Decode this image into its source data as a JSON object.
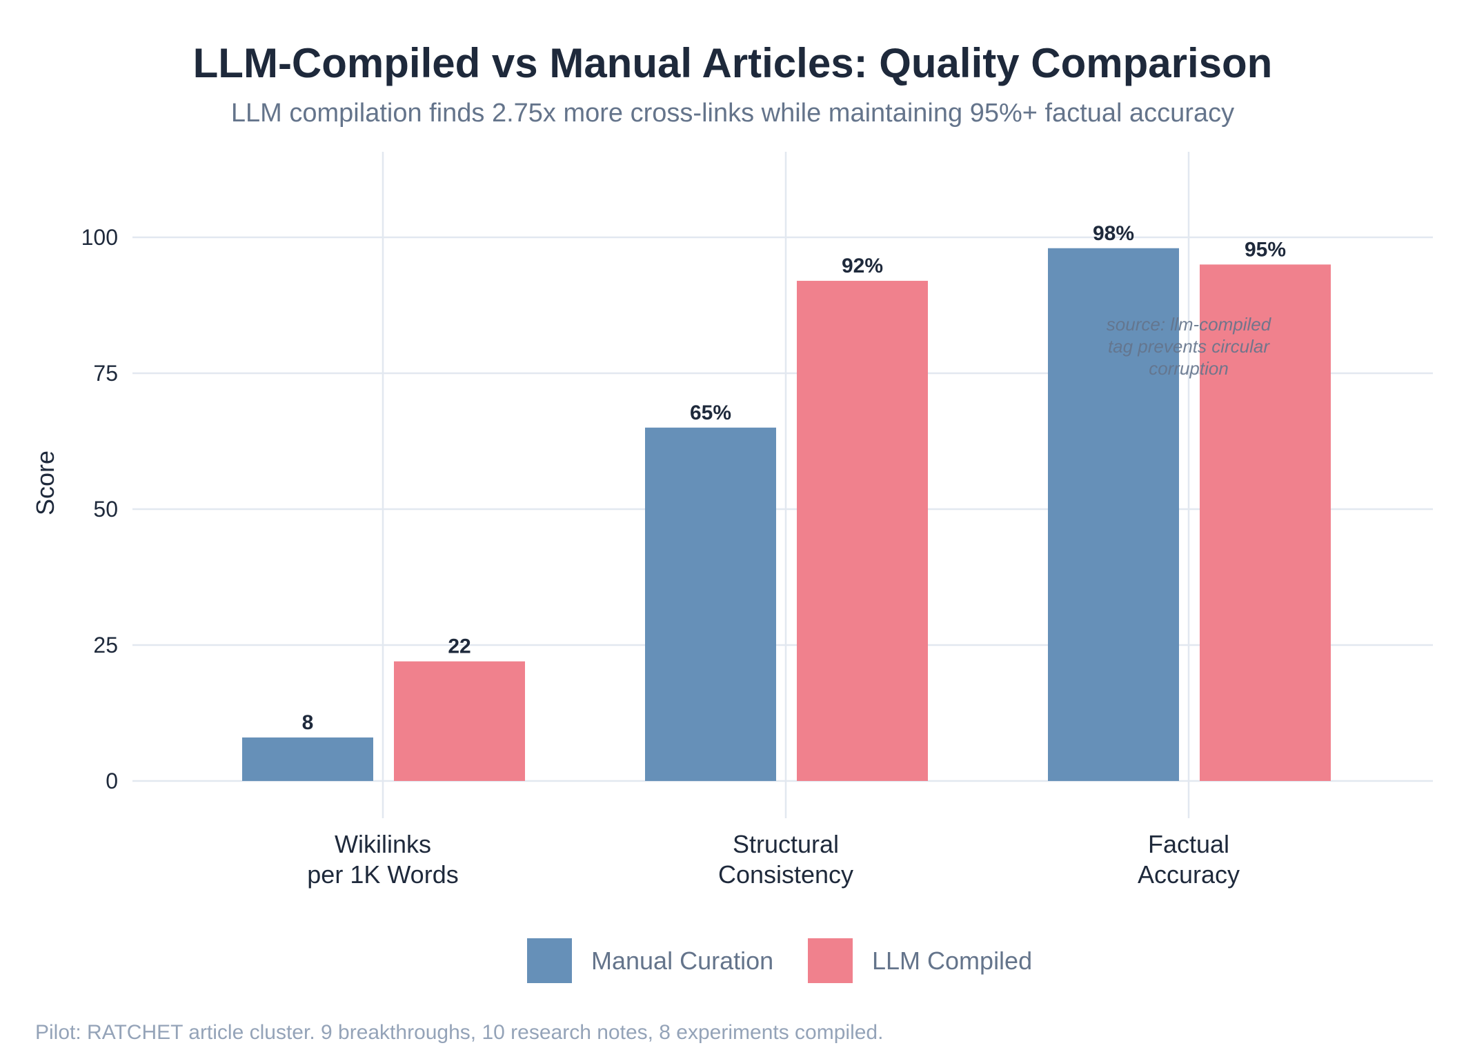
{
  "chart_data": {
    "type": "bar",
    "title": "LLM-Compiled vs Manual Articles: Quality Comparison",
    "subtitle": "LLM compilation finds 2.75x more cross-links while maintaining 95%+ factual accuracy",
    "xlabel": "",
    "ylabel": "Score",
    "ylim": [
      0,
      113
    ],
    "yticks": [
      0,
      25,
      50,
      75,
      100
    ],
    "grid": true,
    "legend_position": "bottom",
    "categories": [
      [
        "Wikilinks",
        "per 1K Words"
      ],
      [
        "Structural",
        "Consistency"
      ],
      [
        "Factual",
        "Accuracy"
      ]
    ],
    "series": [
      {
        "name": "Manual Curation",
        "color": "#6690b8",
        "values": [
          8,
          65,
          98
        ],
        "labels": [
          "8",
          "65%",
          "98%"
        ]
      },
      {
        "name": "LLM Compiled",
        "color": "#f0818d",
        "values": [
          22,
          92,
          95
        ],
        "labels": [
          "22",
          "92%",
          "95%"
        ]
      }
    ],
    "annotation": [
      "source: llm-compiled",
      "tag prevents circular",
      "corruption"
    ],
    "footnote": "Pilot: RATCHET article cluster. 9 breakthroughs, 10 research notes, 8 experiments compiled."
  }
}
